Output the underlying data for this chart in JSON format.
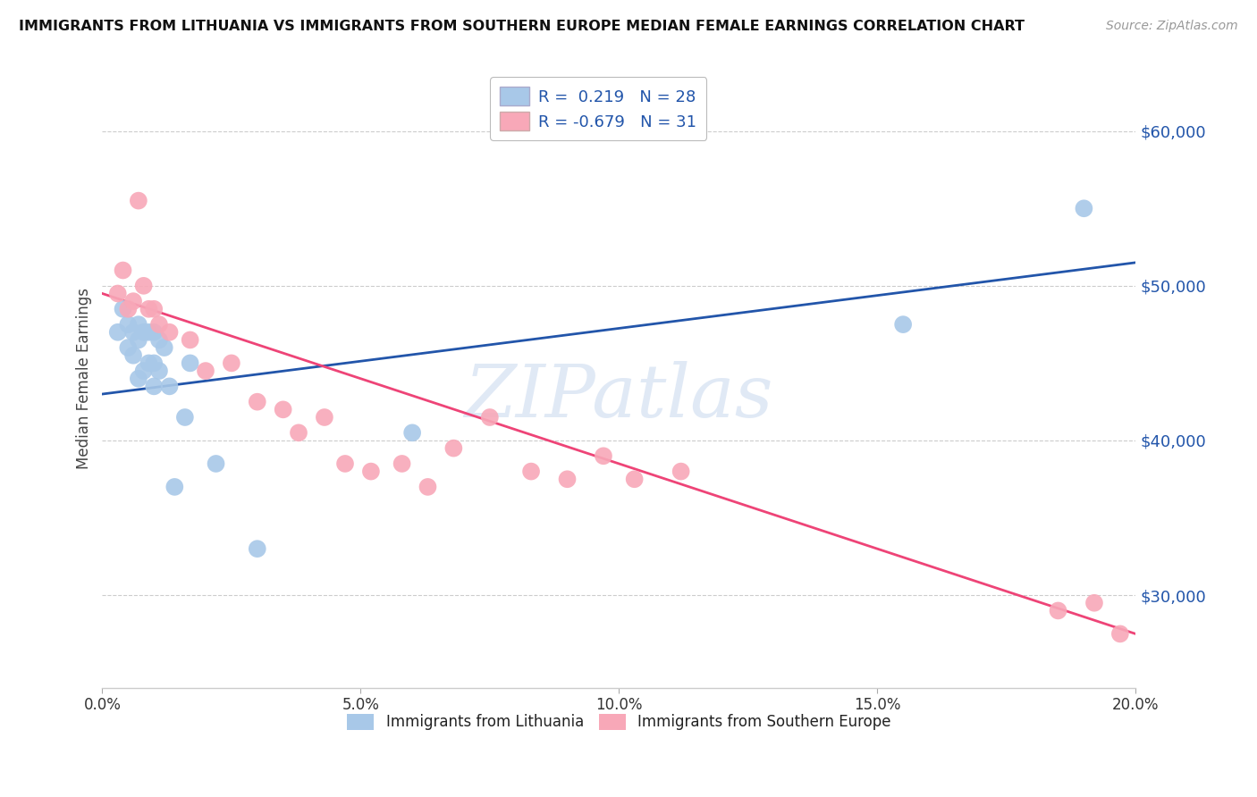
{
  "title": "IMMIGRANTS FROM LITHUANIA VS IMMIGRANTS FROM SOUTHERN EUROPE MEDIAN FEMALE EARNINGS CORRELATION CHART",
  "source": "Source: ZipAtlas.com",
  "ylabel": "Median Female Earnings",
  "xmin": 0.0,
  "xmax": 0.2,
  "ymin": 24000,
  "ymax": 64000,
  "yticks": [
    30000,
    40000,
    50000,
    60000
  ],
  "ytick_labels": [
    "$30,000",
    "$40,000",
    "$50,000",
    "$60,000"
  ],
  "xticks": [
    0.0,
    0.05,
    0.1,
    0.15,
    0.2
  ],
  "xtick_labels": [
    "0.0%",
    "5.0%",
    "10.0%",
    "15.0%",
    "20.0%"
  ],
  "blue_color": "#A8C8E8",
  "blue_line_color": "#2255AA",
  "pink_color": "#F8A8B8",
  "pink_line_color": "#EE4477",
  "legend_label1": "Immigrants from Lithuania",
  "legend_label2": "Immigrants from Southern Europe",
  "watermark": "ZIPatlas",
  "blue_x": [
    0.003,
    0.004,
    0.005,
    0.005,
    0.006,
    0.006,
    0.007,
    0.007,
    0.007,
    0.008,
    0.008,
    0.009,
    0.009,
    0.01,
    0.01,
    0.01,
    0.011,
    0.011,
    0.012,
    0.013,
    0.014,
    0.016,
    0.017,
    0.022,
    0.03,
    0.06,
    0.155,
    0.19
  ],
  "blue_y": [
    47000,
    48500,
    47500,
    46000,
    47000,
    45500,
    47500,
    46500,
    44000,
    47000,
    44500,
    47000,
    45000,
    47000,
    45000,
    43500,
    46500,
    44500,
    46000,
    43500,
    37000,
    41500,
    45000,
    38500,
    33000,
    40500,
    47500,
    55000
  ],
  "pink_x": [
    0.003,
    0.004,
    0.005,
    0.006,
    0.007,
    0.008,
    0.009,
    0.01,
    0.011,
    0.013,
    0.017,
    0.02,
    0.025,
    0.03,
    0.035,
    0.038,
    0.043,
    0.047,
    0.052,
    0.058,
    0.063,
    0.068,
    0.075,
    0.083,
    0.09,
    0.097,
    0.103,
    0.112,
    0.185,
    0.192,
    0.197
  ],
  "pink_y": [
    49500,
    51000,
    48500,
    49000,
    55500,
    50000,
    48500,
    48500,
    47500,
    47000,
    46500,
    44500,
    45000,
    42500,
    42000,
    40500,
    41500,
    38500,
    38000,
    38500,
    37000,
    39500,
    41500,
    38000,
    37500,
    39000,
    37500,
    38000,
    29000,
    29500,
    27500
  ],
  "blue_line_x": [
    0.0,
    0.2
  ],
  "blue_line_y": [
    43000,
    51500
  ],
  "pink_line_x": [
    0.0,
    0.2
  ],
  "pink_line_y": [
    49500,
    27500
  ]
}
